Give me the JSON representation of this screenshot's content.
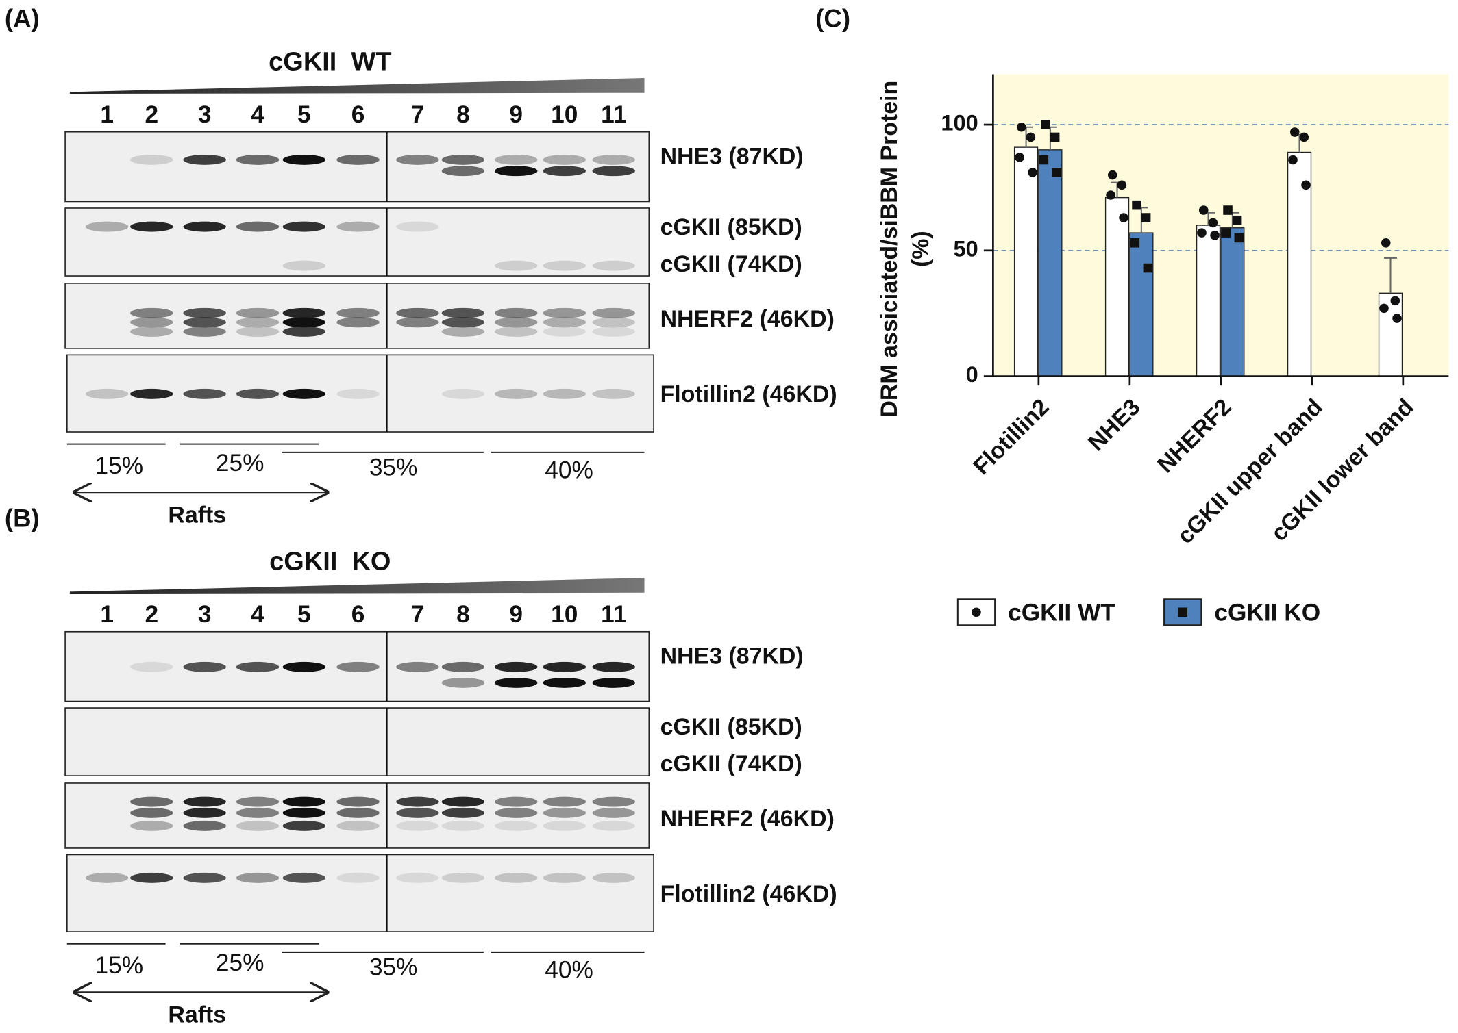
{
  "panels": [
    {
      "label": "(A)",
      "title": "cGKII  WT",
      "lanes": [
        "1",
        "2",
        "3",
        "4",
        "5",
        "6",
        "7",
        "8",
        "9",
        "10",
        "11"
      ],
      "blots": [
        [
          "NHE3 (87KD)"
        ],
        [
          "cGKII (85KD)",
          "cGKII (74KD)"
        ],
        [
          "NHERF2 (46KD)"
        ],
        [
          "Flotillin2 (46KD)"
        ]
      ],
      "gradient": [
        "15%",
        "25%",
        "35%",
        "40%"
      ],
      "rafts": "Rafts"
    },
    {
      "label": "(B)",
      "title": "cGKII  KO",
      "lanes": [
        "1",
        "2",
        "3",
        "4",
        "5",
        "6",
        "7",
        "8",
        "9",
        "10",
        "11"
      ],
      "blots": [
        [
          "NHE3 (87KD)"
        ],
        [
          "cGKII (85KD)",
          "cGKII (74KD)"
        ],
        [
          "NHERF2 (46KD)"
        ],
        [
          "Flotillin2 (46KD)"
        ]
      ],
      "gradient": [
        "15%",
        "25%",
        "35%",
        "40%"
      ],
      "rafts": "Rafts"
    }
  ],
  "chart_data": {
    "type": "bar",
    "label": "(C)",
    "ylabel": "DRM assiciated/siBBM Protein",
    "ylabel_unit": "(%)",
    "categories": [
      "Flotillin2",
      "NHE3",
      "NHERF2",
      "cGKII upper band",
      "cGKII lower band"
    ],
    "series": [
      {
        "name": "cGKII WT",
        "color": "#ffffff",
        "marker": "circle",
        "values": [
          91,
          71,
          60,
          89,
          33
        ],
        "errors": [
          8,
          6,
          5,
          7,
          14
        ],
        "points": [
          [
            99,
            95,
            87,
            81
          ],
          [
            80,
            76,
            72,
            63
          ],
          [
            66,
            61,
            57,
            56
          ],
          [
            97,
            95,
            86,
            76
          ],
          [
            53,
            30,
            27,
            23
          ]
        ]
      },
      {
        "name": "cGKII KO",
        "color": "#4f81bd",
        "marker": "square",
        "values": [
          90,
          57,
          59,
          null,
          null
        ],
        "errors": [
          9,
          10,
          6,
          null,
          null
        ],
        "points": [
          [
            100,
            95,
            86,
            81
          ],
          [
            68,
            63,
            53,
            43
          ],
          [
            66,
            62,
            57,
            55
          ],
          null,
          null
        ]
      }
    ],
    "ylim": [
      0,
      120
    ],
    "yticks": [
      0,
      50,
      100
    ],
    "grid": true,
    "plot_background": "#fdfbdc"
  }
}
